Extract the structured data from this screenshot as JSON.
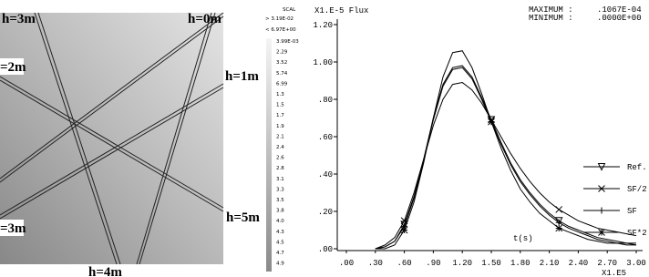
{
  "map": {
    "labels": [
      "h=3m",
      "h=0m",
      "=2m",
      "h=1m",
      "=3m",
      "h=5m",
      "h=4m"
    ]
  },
  "scale": {
    "title": "SCAL",
    "max_label": "> 3.19E-02",
    "min_label": "< 6.97E+00",
    "levels": [
      "3.99E-03",
      "2.29",
      "3.52",
      "5.74",
      "6.99",
      "1.3",
      "1.5",
      "1.7",
      "1.9",
      "2.1",
      "2.4",
      "2.6",
      "2.8",
      "3.1",
      "3.3",
      "3.5",
      "3.8",
      "4.0",
      "4.3",
      "4.5",
      "4.7",
      "4.9"
    ]
  },
  "chart_data": {
    "type": "line",
    "y_label": "X1.E-5 Flux",
    "x_unit": "X1.E5",
    "x_label": "t(s)",
    "stats": [
      {
        "name": "MAXIMUM :",
        "value": ".1067E-04"
      },
      {
        "name": "MINIMUM :",
        "value": ".0000E+00"
      }
    ],
    "x": [
      0.3,
      0.4,
      0.5,
      0.6,
      0.7,
      0.8,
      0.9,
      1.0,
      1.1,
      1.2,
      1.3,
      1.4,
      1.5,
      1.6,
      1.7,
      1.8,
      1.9,
      2.0,
      2.1,
      2.2,
      2.3,
      2.4,
      2.5,
      2.6,
      2.7,
      2.8,
      2.9,
      3.0
    ],
    "xlim": [
      0,
      3
    ],
    "xticks": [
      {
        "value": 0,
        "label": ".00"
      },
      {
        "value": 0.3,
        "label": ".30"
      },
      {
        "value": 0.6,
        "label": ".60"
      },
      {
        "value": 0.9,
        "label": ".90"
      },
      {
        "value": 1.2,
        "label": "1.20"
      },
      {
        "value": 1.5,
        "label": "1.50"
      },
      {
        "value": 1.8,
        "label": "1.80"
      },
      {
        "value": 2.1,
        "label": "2.10"
      },
      {
        "value": 2.4,
        "label": "2.40"
      },
      {
        "value": 2.7,
        "label": "2.70"
      },
      {
        "value": 3,
        "label": "3.00"
      }
    ],
    "ylim": [
      0,
      1.2
    ],
    "yticks": [
      {
        "value": 0,
        "label": ".00"
      },
      {
        "value": 0.2,
        "label": ".20"
      },
      {
        "value": 0.4,
        "label": ".40"
      },
      {
        "value": 0.6,
        "label": ".60"
      },
      {
        "value": 0.8,
        "label": ".80"
      },
      {
        "value": 1,
        "label": "1.00"
      },
      {
        "value": 1.2,
        "label": "1.20"
      }
    ],
    "series": [
      {
        "name": "Ref.",
        "color": "#000000",
        "marker": "triangle",
        "values": [
          0,
          0.01,
          0.04,
          0.13,
          0.28,
          0.48,
          0.7,
          0.88,
          0.97,
          0.98,
          0.92,
          0.81,
          0.69,
          0.57,
          0.46,
          0.37,
          0.3,
          0.24,
          0.19,
          0.15,
          0.12,
          0.1,
          0.08,
          0.06,
          0.05,
          0.04,
          0.03,
          0.03
        ]
      },
      {
        "name": "SF/2",
        "color": "#000000",
        "marker": "x",
        "values": [
          0,
          0.02,
          0.06,
          0.15,
          0.3,
          0.48,
          0.66,
          0.8,
          0.88,
          0.89,
          0.85,
          0.78,
          0.69,
          0.6,
          0.51,
          0.43,
          0.36,
          0.3,
          0.25,
          0.21,
          0.18,
          0.15,
          0.13,
          0.11,
          0.1,
          0.09,
          0.08,
          0.07
        ]
      },
      {
        "name": "SF",
        "color": "#000000",
        "marker": "plus",
        "values": [
          0,
          0.01,
          0.04,
          0.12,
          0.27,
          0.47,
          0.69,
          0.87,
          0.96,
          0.97,
          0.91,
          0.8,
          0.68,
          0.56,
          0.45,
          0.36,
          0.29,
          0.23,
          0.18,
          0.14,
          0.11,
          0.09,
          0.07,
          0.05,
          0.04,
          0.03,
          0.03,
          0.02
        ]
      },
      {
        "name": "SF*2",
        "color": "#000000",
        "marker": "asterisk",
        "values": [
          0,
          0,
          0.02,
          0.1,
          0.25,
          0.46,
          0.7,
          0.92,
          1.05,
          1.06,
          0.97,
          0.83,
          0.68,
          0.54,
          0.42,
          0.32,
          0.25,
          0.19,
          0.15,
          0.11,
          0.09,
          0.07,
          0.05,
          0.04,
          0.03,
          0.03,
          0.02,
          0.02
        ]
      }
    ]
  }
}
